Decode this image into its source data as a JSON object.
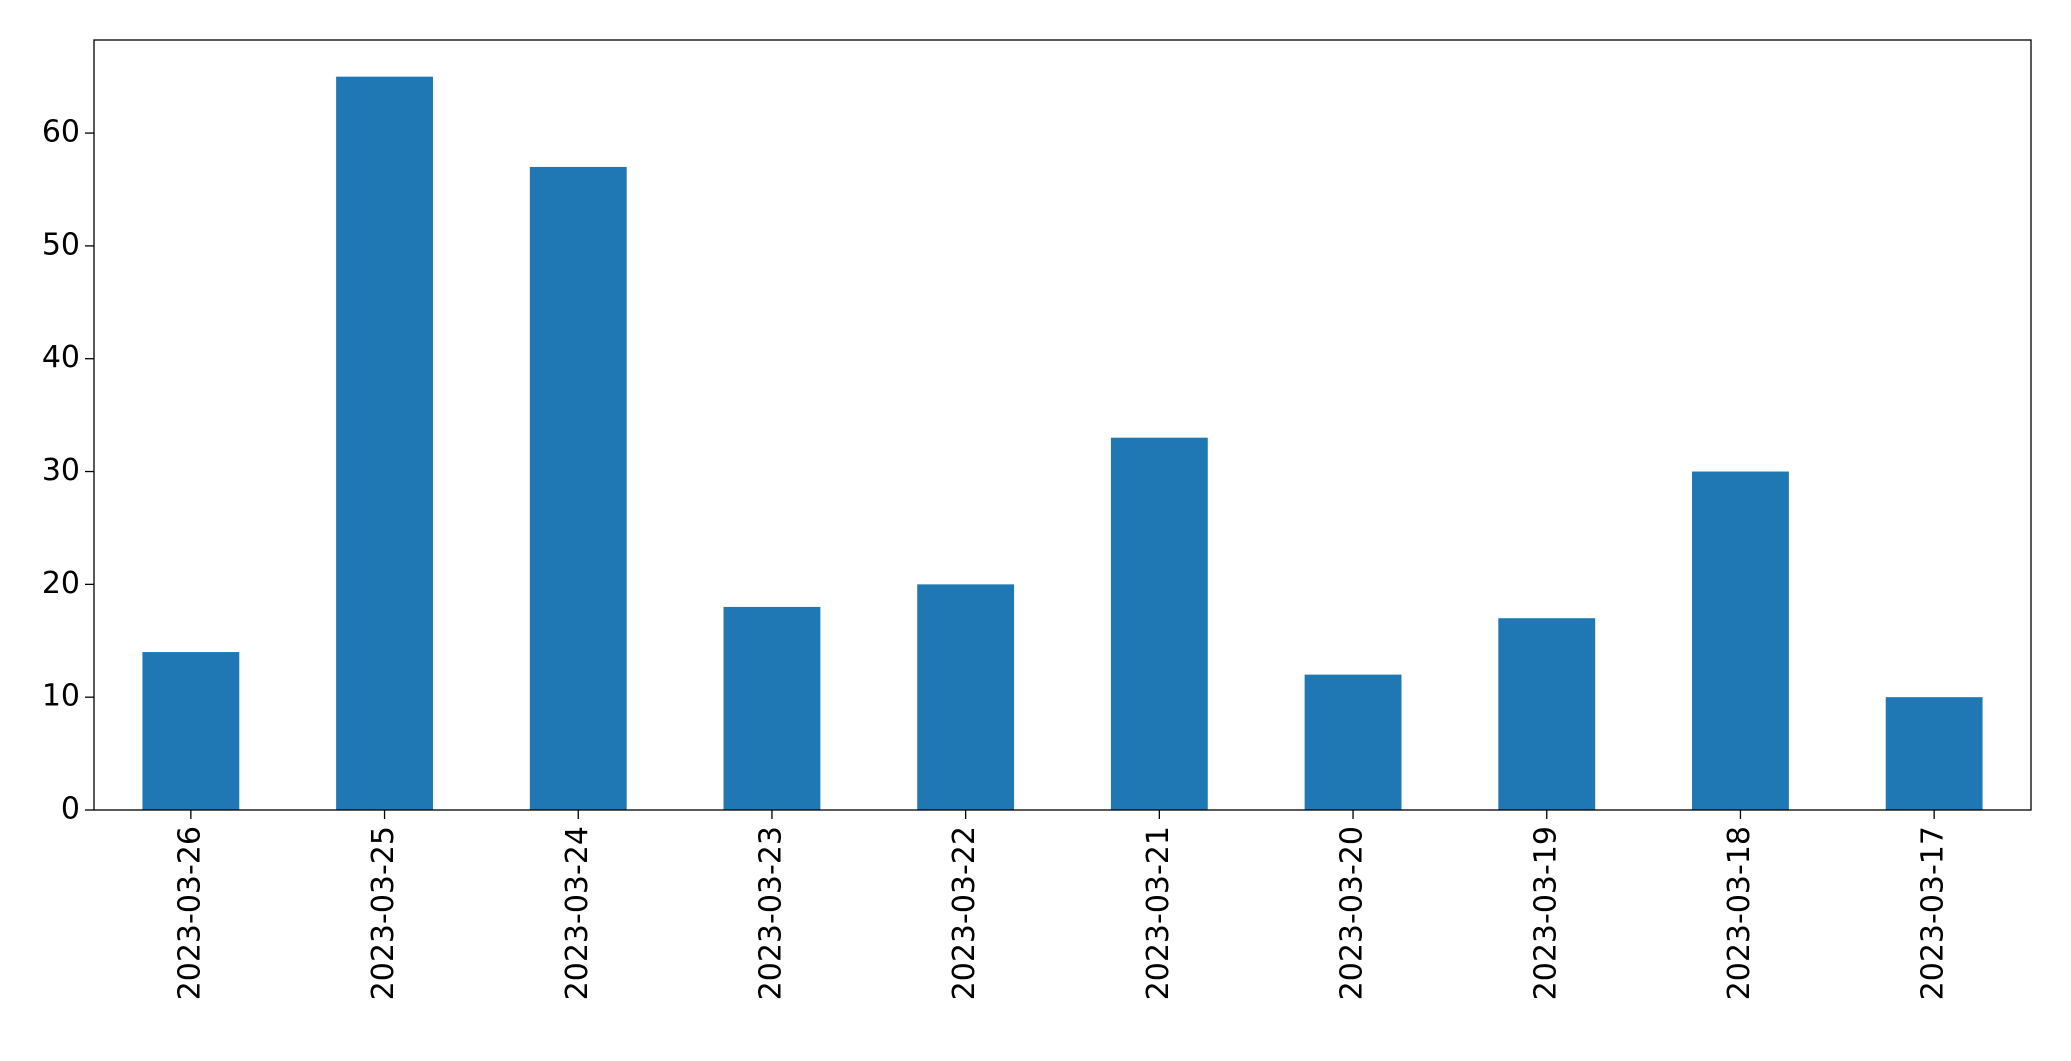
{
  "chart_data": {
    "type": "bar",
    "categories": [
      "2023-03-26",
      "2023-03-25",
      "2023-03-24",
      "2023-03-23",
      "2023-03-22",
      "2023-03-21",
      "2023-03-20",
      "2023-03-19",
      "2023-03-18",
      "2023-03-17"
    ],
    "values": [
      14,
      65,
      57,
      18,
      20,
      33,
      12,
      17,
      30,
      10
    ],
    "color": "#1f77b4",
    "ylim": [
      0,
      68.25
    ],
    "yticks": [
      0,
      10,
      20,
      30,
      40,
      50,
      60
    ],
    "grid": false
  }
}
